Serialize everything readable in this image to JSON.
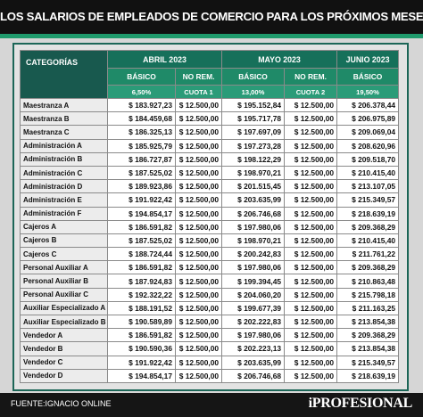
{
  "title": "LOS SALARIOS DE EMPLEADOS DE COMERCIO PARA LOS PRÓXIMOS MESES",
  "table": {
    "corner": "CATEGORÍAS",
    "months": [
      "ABRIL 2023",
      "MAYO 2023",
      "JUNIO 2023"
    ],
    "subheaders": [
      "BÁSICO",
      "NO REM.",
      "BÁSICO",
      "NO REM.",
      "BÁSICO"
    ],
    "notes": [
      "6,50%",
      "CUOTA 1",
      "13,00%",
      "CUOTA 2",
      "19,50%"
    ],
    "rows": [
      [
        "Maestranza A",
        "$ 183.927,23",
        "$ 12.500,00",
        "$ 195.152,84",
        "$ 12.500,00",
        "$ 206.378,44"
      ],
      [
        "Maestranza B",
        "$ 184.459,68",
        "$ 12.500,00",
        "$ 195.717,78",
        "$ 12.500,00",
        "$ 206.975,89"
      ],
      [
        "Maestranza C",
        "$ 186.325,13",
        "$ 12.500,00",
        "$ 197.697,09",
        "$ 12.500,00",
        "$ 209.069,04"
      ],
      [
        "Administración A",
        "$ 185.925,79",
        "$ 12.500,00",
        "$ 197.273,28",
        "$ 12.500,00",
        "$ 208.620,96"
      ],
      [
        "Administración B",
        "$ 186.727,87",
        "$ 12.500,00",
        "$ 198.122,29",
        "$ 12.500,00",
        "$ 209.518,70"
      ],
      [
        "Administración C",
        "$ 187.525,02",
        "$ 12.500,00",
        "$ 198.970,21",
        "$ 12.500,00",
        "$ 210.415,40"
      ],
      [
        "Administración D",
        "$ 189.923,86",
        "$ 12.500,00",
        "$ 201.515,45",
        "$ 12.500,00",
        "$ 213.107,05"
      ],
      [
        "Administración E",
        "$ 191.922,42",
        "$ 12.500,00",
        "$ 203.635,99",
        "$ 12.500,00",
        "$ 215.349,57"
      ],
      [
        "Administración F",
        "$ 194.854,17",
        "$ 12.500,00",
        "$ 206.746,68",
        "$ 12.500,00",
        "$ 218.639,19"
      ],
      [
        "Cajeros A",
        "$ 186.591,82",
        "$ 12.500,00",
        "$ 197.980,06",
        "$ 12.500,00",
        "$ 209.368,29"
      ],
      [
        "Cajeros B",
        "$ 187.525,02",
        "$ 12.500,00",
        "$ 198.970,21",
        "$ 12.500,00",
        "$ 210.415,40"
      ],
      [
        "Cajeros C",
        "$ 188.724,44",
        "$ 12.500,00",
        "$ 200.242,83",
        "$ 12.500,00",
        "$ 211.761,22"
      ],
      [
        "Personal Auxiliar A",
        "$ 186.591,82",
        "$ 12.500,00",
        "$ 197.980,06",
        "$ 12.500,00",
        "$ 209.368,29"
      ],
      [
        "Personal Auxiliar B",
        "$ 187.924,83",
        "$ 12.500,00",
        "$ 199.394,45",
        "$ 12.500,00",
        "$ 210.863,48"
      ],
      [
        "Personal Auxiliar C",
        "$ 192.322,22",
        "$ 12.500,00",
        "$ 204.060,20",
        "$ 12.500,00",
        "$ 215.798,18"
      ],
      [
        "Auxiliar Especializado A",
        "$ 188.191,52",
        "$ 12.500,00",
        "$ 199.677,39",
        "$ 12.500,00",
        "$ 211.163,25"
      ],
      [
        "Auxiliar Especializado B",
        "$ 190.589,89",
        "$ 12.500,00",
        "$ 202.222,83",
        "$ 12.500,00",
        "$ 213.854,38"
      ],
      [
        "Vendedor A",
        "$ 186.591,82",
        "$ 12.500,00",
        "$ 197.980,06",
        "$ 12.500,00",
        "$ 209.368,29"
      ],
      [
        "Vendedor B",
        "$ 190.590,36",
        "$ 12.500,00",
        "$ 202.223,13",
        "$ 12.500,00",
        "$ 213.854,38"
      ],
      [
        "Vendedor C",
        "$ 191.922,42",
        "$ 12.500,00",
        "$ 203.635,99",
        "$ 12.500,00",
        "$ 215.349,57"
      ],
      [
        "Vendedor D",
        "$ 194.854,17",
        "$ 12.500,00",
        "$ 206.746,68",
        "$ 12.500,00",
        "$ 218.639,19"
      ]
    ]
  },
  "footer": {
    "source": "FUENTE:IGNACIO ONLINE",
    "logo": "iPROFESIONAL"
  }
}
